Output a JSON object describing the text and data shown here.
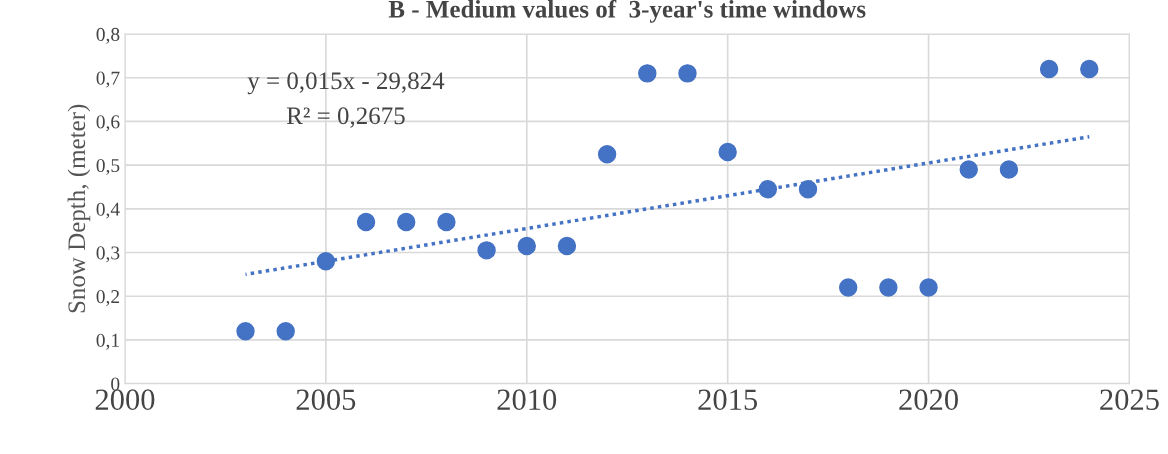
{
  "chart_data": {
    "type": "scatter",
    "title": "B - Medium values of  3-year's time windows",
    "ylabel": "Snow Depth, (meter)",
    "x": [
      2003,
      2004,
      2005,
      2006,
      2007,
      2008,
      2009,
      2010,
      2011,
      2012,
      2013,
      2014,
      2015,
      2016,
      2017,
      2018,
      2019,
      2020,
      2021,
      2022,
      2023,
      2024
    ],
    "series": [
      {
        "color": "#4472c4",
        "marker": "circle",
        "values": [
          0.12,
          0.12,
          0.28,
          0.37,
          0.37,
          0.37,
          0.305,
          0.315,
          0.315,
          0.525,
          0.71,
          0.71,
          0.53,
          0.445,
          0.445,
          0.22,
          0.22,
          0.22,
          0.49,
          0.49,
          0.72,
          0.72
        ]
      },
      {
        "type": "line",
        "color": "#4472c4",
        "line_style": "dotted",
        "marker": "none",
        "x": [
          2003,
          2024
        ],
        "values": [
          0.25,
          0.565
        ]
      }
    ],
    "xlim": [
      2000,
      2025
    ],
    "xticks": [
      2000,
      2005,
      2010,
      2015,
      2020,
      2025
    ],
    "ylim": [
      0,
      0.8
    ],
    "yticks": [
      {
        "value": 0,
        "label": "0"
      },
      {
        "value": 0.1,
        "label": "0,1"
      },
      {
        "value": 0.2,
        "label": "0,2"
      },
      {
        "value": 0.3,
        "label": "0,3"
      },
      {
        "value": 0.4,
        "label": "0,4"
      },
      {
        "value": 0.5,
        "label": "0,5"
      },
      {
        "value": 0.6,
        "label": "0,6"
      },
      {
        "value": 0.7,
        "label": "0,7"
      },
      {
        "value": 0.8,
        "label": "0,8"
      }
    ],
    "grid": true,
    "annotations": [
      "y = 0,015x - 29,824",
      "R² = 0,2675"
    ]
  }
}
